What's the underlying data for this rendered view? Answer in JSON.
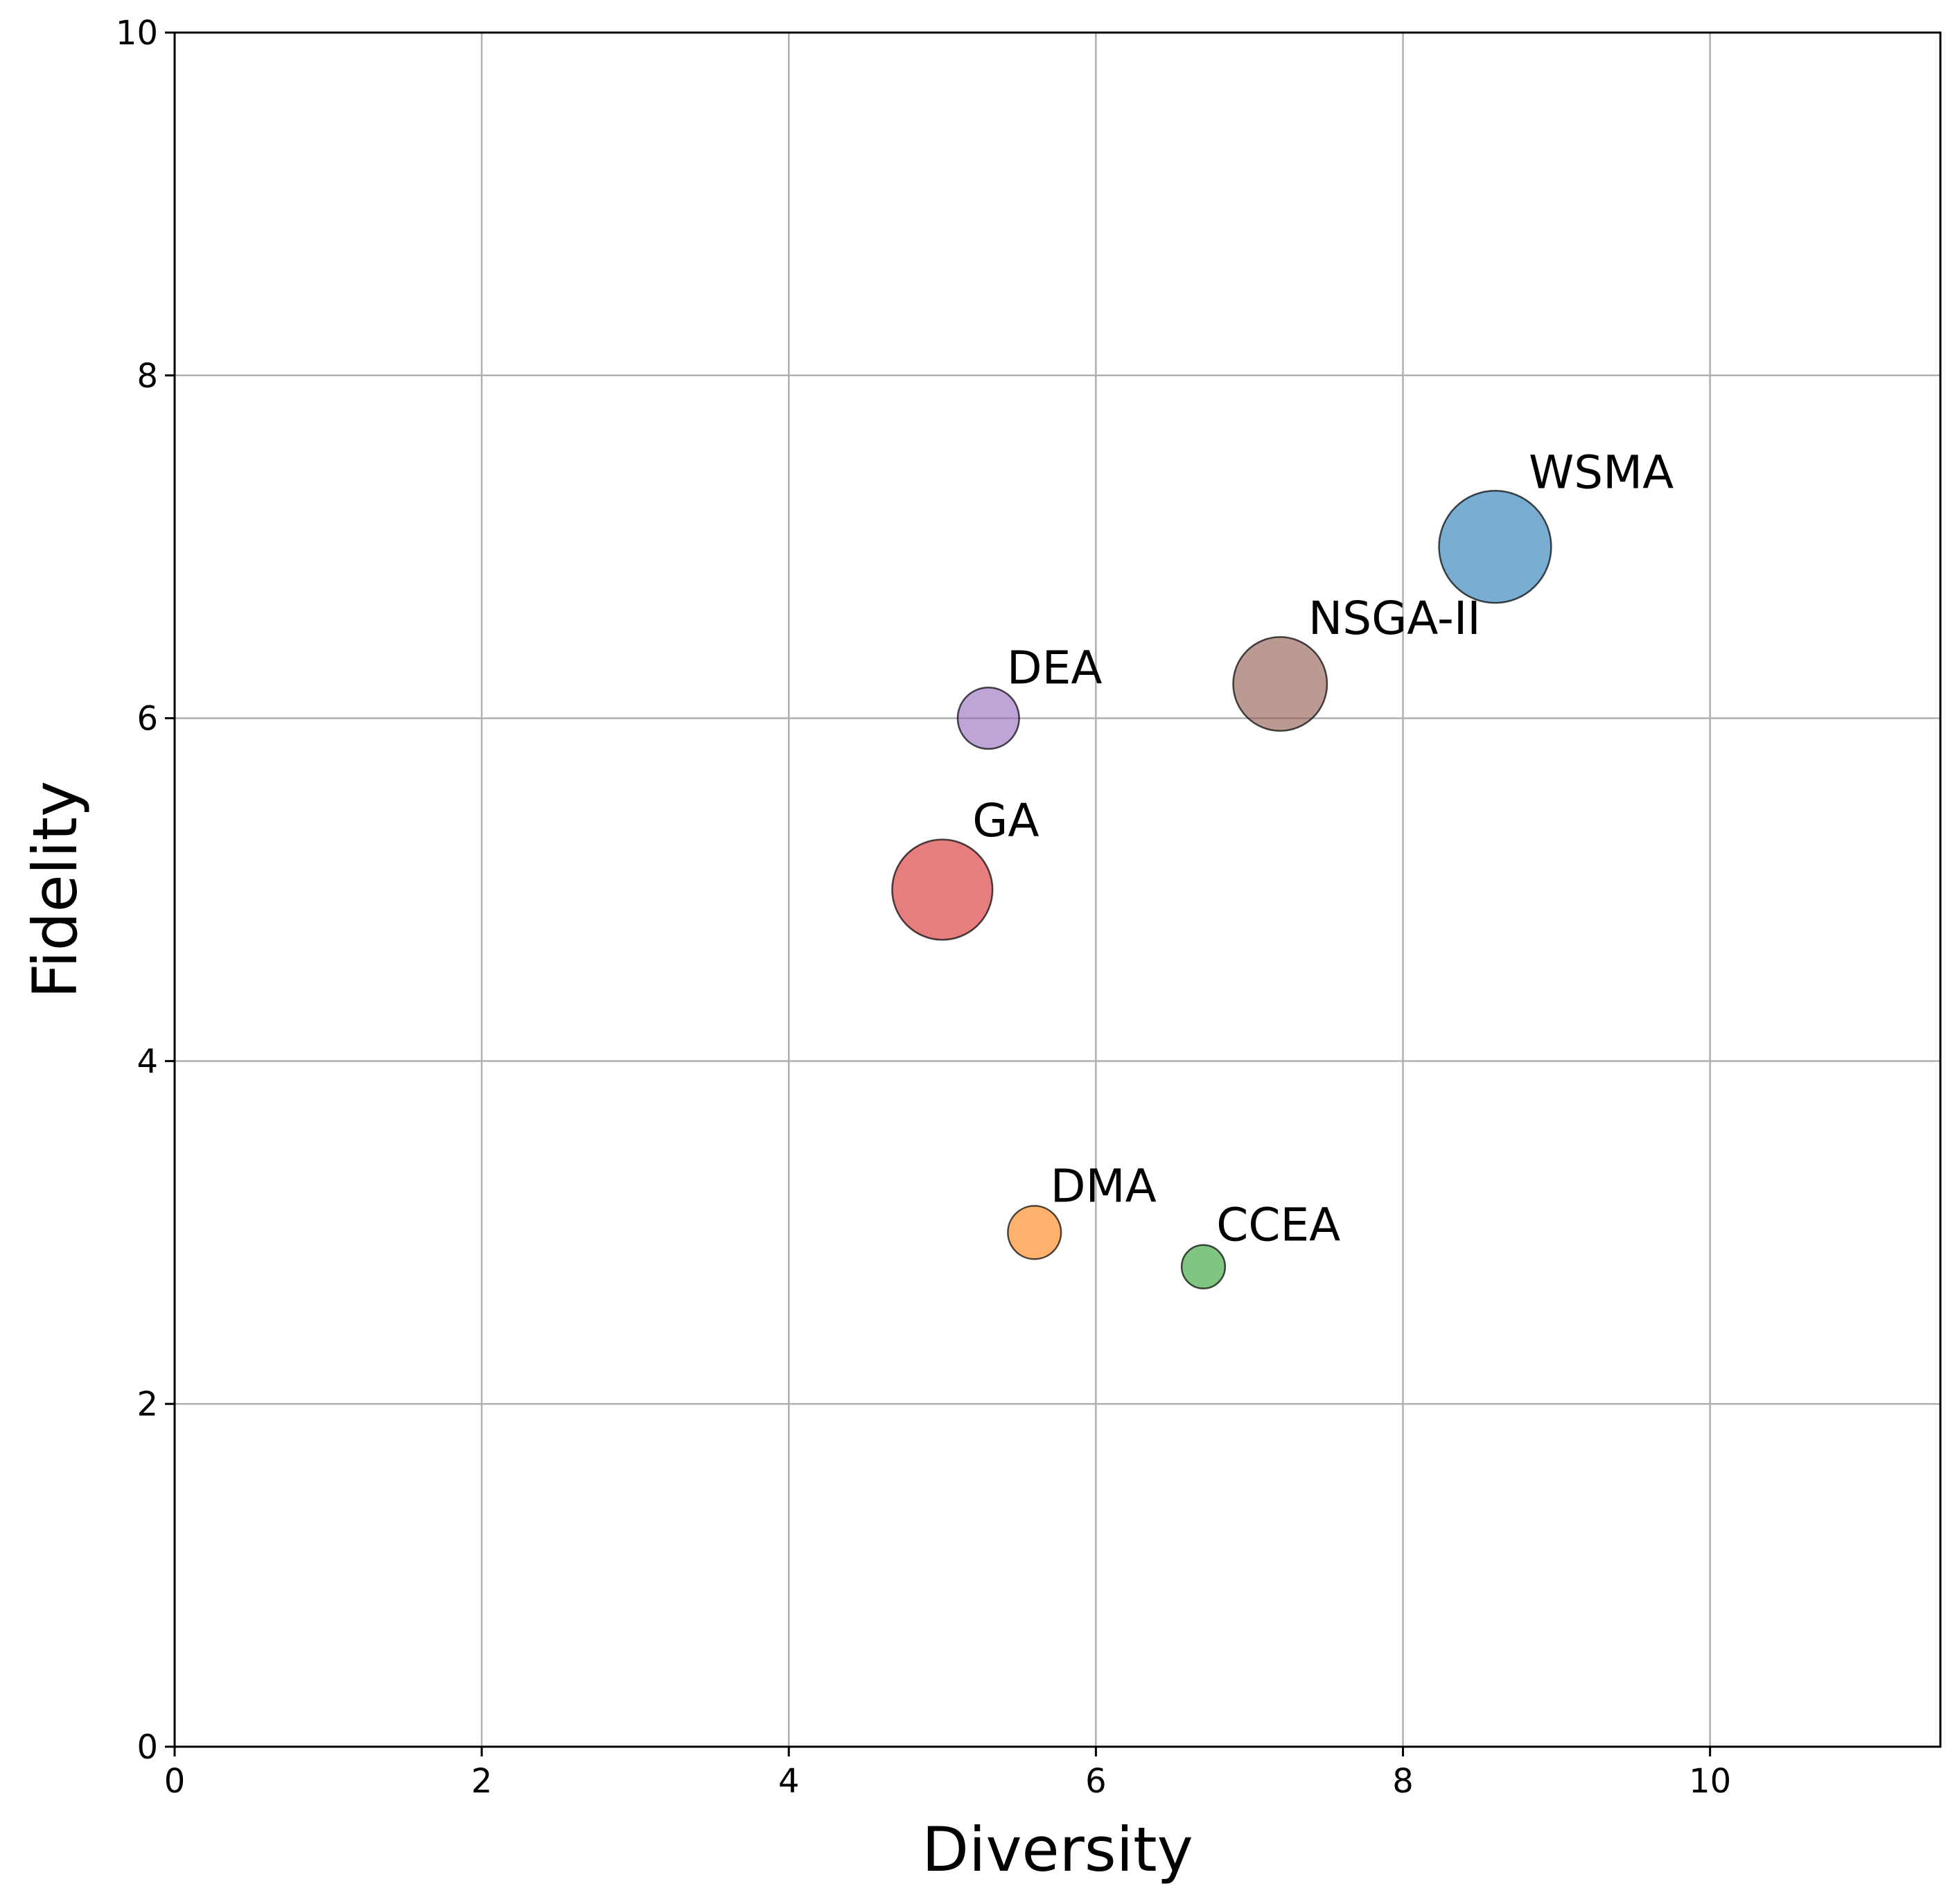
{
  "chart_data": {
    "type": "scatter",
    "title": "",
    "xlabel": "Diversity",
    "ylabel": "Fidelity",
    "xlim": [
      0,
      11.5
    ],
    "ylim": [
      0,
      10
    ],
    "grid": true,
    "xticks": [
      0,
      2,
      4,
      6,
      8,
      10
    ],
    "yticks": [
      0,
      2,
      4,
      6,
      8,
      10
    ],
    "xtick_labels": [
      "0",
      "2",
      "4",
      "6",
      "8",
      "10"
    ],
    "ytick_labels": [
      "0",
      "2",
      "4",
      "6",
      "8",
      "10"
    ],
    "points": [
      {
        "label": "WSMA",
        "x": 8.6,
        "y": 7.0,
        "size": 2000,
        "color": "#1f77b4"
      },
      {
        "label": "NSGA-II",
        "x": 7.2,
        "y": 6.2,
        "size": 1400,
        "color": "#8c564b"
      },
      {
        "label": "DEA",
        "x": 5.3,
        "y": 6.0,
        "size": 600,
        "color": "#9467bd"
      },
      {
        "label": "GA",
        "x": 5.0,
        "y": 5.0,
        "size": 1600,
        "color": "#d62728"
      },
      {
        "label": "DMA",
        "x": 5.6,
        "y": 3.0,
        "size": 450,
        "color": "#ff7f0e"
      },
      {
        "label": "CCEA",
        "x": 6.7,
        "y": 2.8,
        "size": 300,
        "color": "#2ca02c"
      }
    ]
  }
}
